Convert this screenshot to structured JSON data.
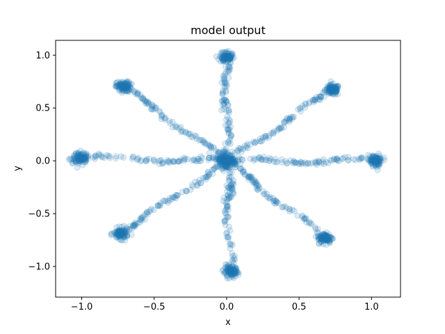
{
  "chart_data": {
    "type": "scatter",
    "title": "model output",
    "xlabel": "x",
    "ylabel": "y",
    "xlim": [
      -1.18,
      1.2
    ],
    "ylim": [
      -1.29,
      1.14
    ],
    "xticks": [
      -1.0,
      -0.5,
      0.0,
      0.5,
      1.0
    ],
    "xtick_labels": [
      "−1.0",
      "−0.5",
      "0.0",
      "0.5",
      "1.0"
    ],
    "yticks": [
      -1.0,
      -0.5,
      0.0,
      0.5,
      1.0
    ],
    "ytick_labels": [
      "−1.0",
      "−0.5",
      "0.0",
      "0.5",
      "1.0"
    ],
    "grid": false,
    "marker_color": "#1f77b4",
    "marker_alpha": 0.15,
    "description": "Eight radial arms from the origin to clusters at angles 0,45,...,315 degrees (radius ~1)",
    "series": [
      {
        "clusters": [
          {
            "x": 1.03,
            "y": 0.0
          },
          {
            "x": 0.73,
            "y": 0.67
          },
          {
            "x": 0.0,
            "y": 0.98
          },
          {
            "x": -0.71,
            "y": 0.7
          },
          {
            "x": -1.01,
            "y": 0.03
          },
          {
            "x": -0.73,
            "y": -0.69
          },
          {
            "x": 0.03,
            "y": -1.05
          },
          {
            "x": 0.68,
            "y": -0.73
          },
          {
            "x": 0.0,
            "y": 0.0
          }
        ],
        "arms_deg": [
          0,
          45,
          90,
          135,
          180,
          225,
          270,
          315
        ]
      }
    ]
  }
}
